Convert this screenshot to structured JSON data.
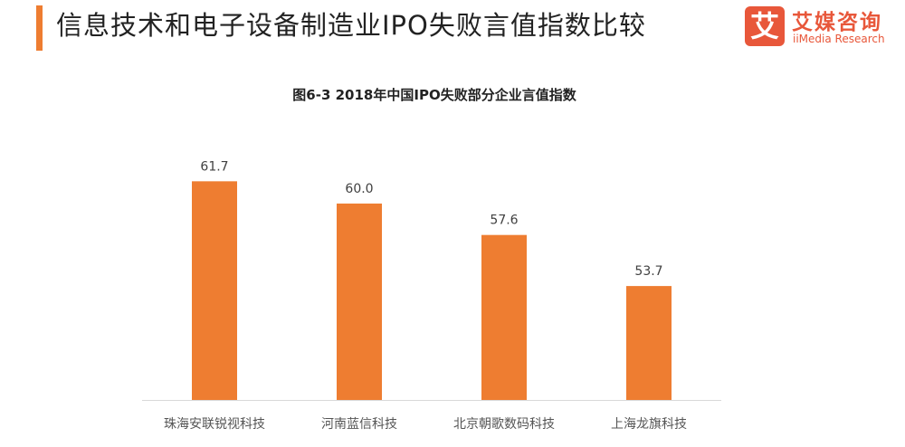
{
  "header": {
    "title": "信息技术和电子设备制造业IPO失败言值指数比较",
    "accent_color": "#ee7d31"
  },
  "logo": {
    "mark": "艾",
    "name_cn": "艾媒咨询",
    "name_en": "iiMedia Research",
    "color": "#e8573a"
  },
  "chart_data": {
    "type": "bar",
    "title": "图6-3 2018年中国IPO失败部分企业言值指数",
    "categories": [
      "珠海安联锐视科技",
      "河南蓝信科技",
      "北京朝歌数码科技",
      "上海龙旗科技"
    ],
    "values": [
      61.7,
      60.0,
      57.6,
      53.7
    ],
    "value_labels": [
      "61.7",
      "60.0",
      "57.6",
      "53.7"
    ],
    "ylim": [
      45,
      62
    ],
    "xlabel": "",
    "ylabel": "",
    "grid": false,
    "bar_color": "#ee7d31",
    "axis_color": "#d9d9d9"
  }
}
